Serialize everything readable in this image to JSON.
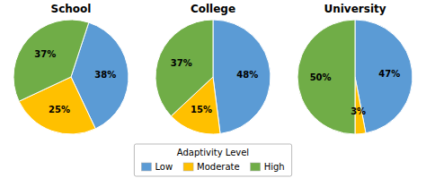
{
  "chart_data": [
    {
      "type": "pie",
      "title": "School",
      "categories": [
        "Low",
        "Moderate",
        "High"
      ],
      "values": [
        38,
        25,
        37
      ],
      "value_labels": [
        "38%",
        "25%",
        "37%"
      ],
      "data_labels": true,
      "colors": [
        "#5B9BD5",
        "#FFC000",
        "#70AD47"
      ],
      "legend": "bottom",
      "legend_title": "Adaptivity Level"
    },
    {
      "type": "pie",
      "title": "College",
      "categories": [
        "Low",
        "Moderate",
        "High"
      ],
      "values": [
        48,
        15,
        37
      ],
      "value_labels": [
        "48%",
        "15%",
        "37%"
      ],
      "data_labels": true,
      "colors": [
        "#5B9BD5",
        "#FFC000",
        "#70AD47"
      ]
    },
    {
      "type": "pie",
      "title": "University",
      "categories": [
        "Low",
        "Moderate",
        "High"
      ],
      "values": [
        47,
        3,
        50
      ],
      "value_labels": [
        "47%",
        "3%",
        "50%"
      ],
      "data_labels": true,
      "colors": [
        "#5B9BD5",
        "#FFC000",
        "#70AD47"
      ]
    }
  ]
}
